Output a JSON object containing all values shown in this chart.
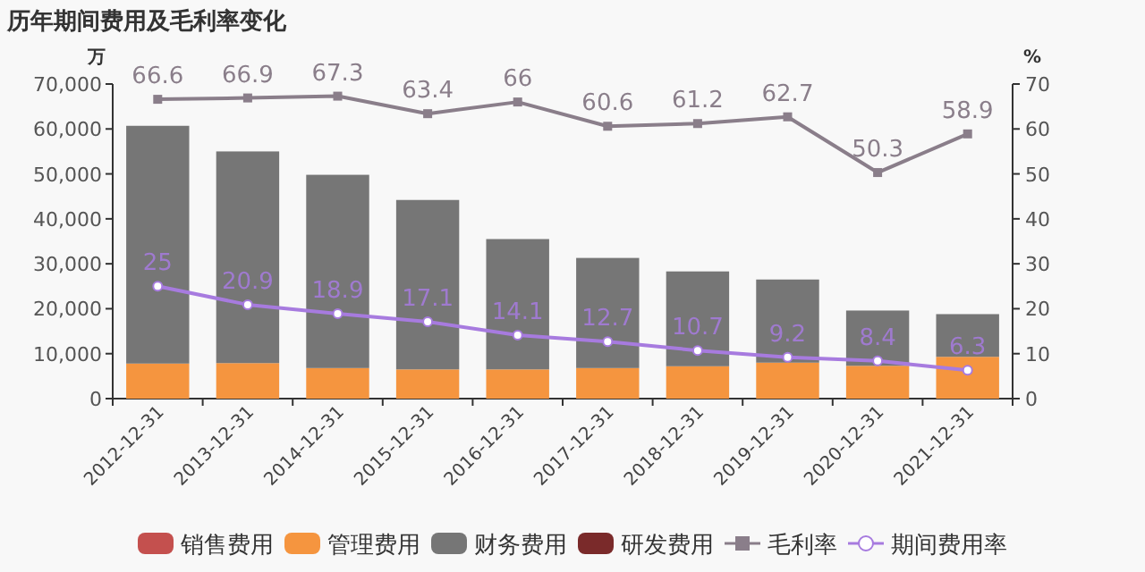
{
  "chart_data": {
    "type": "bar",
    "title": "历年期间费用及毛利率变化",
    "ylabel": "万",
    "y2label": "%",
    "stacked": true,
    "categories": [
      "2012-12-31",
      "2013-12-31",
      "2014-12-31",
      "2015-12-31",
      "2016-12-31",
      "2017-12-31",
      "2018-12-31",
      "2019-12-31",
      "2020-12-31",
      "2021-12-31"
    ],
    "series": [
      {
        "name": "销售费用",
        "color": "#c4504e",
        "values": [
          null,
          null,
          null,
          null,
          null,
          null,
          null,
          null,
          null,
          null
        ]
      },
      {
        "name": "管理费用",
        "color": "#f5953f",
        "values": [
          7800,
          7900,
          6800,
          6500,
          6500,
          6800,
          7200,
          8000,
          7300,
          9300
        ]
      },
      {
        "name": "财务费用",
        "color": "#767676",
        "values": [
          52900,
          47100,
          43000,
          37700,
          29000,
          24500,
          21100,
          18500,
          12300,
          9500
        ]
      },
      {
        "name": "研发费用",
        "color": "#7a2a2a",
        "values": [
          null,
          null,
          null,
          null,
          null,
          null,
          null,
          null,
          null,
          null
        ]
      },
      {
        "name": "毛利率",
        "type": "line",
        "axis": "y2",
        "color": "#8a7e8a",
        "marker": "square",
        "data_labels": true,
        "values": [
          66.6,
          66.9,
          67.3,
          63.4,
          66,
          60.6,
          61.2,
          62.7,
          50.3,
          58.9
        ]
      },
      {
        "name": "期间费用率",
        "type": "line",
        "axis": "y2",
        "color": "#a77bdf",
        "marker": "circle",
        "data_labels": true,
        "values": [
          25,
          20.9,
          18.9,
          17.1,
          14.1,
          12.7,
          10.7,
          9.2,
          8.4,
          6.3
        ]
      }
    ],
    "ylim": [
      0,
      70000
    ],
    "yticks": [
      {
        "value": 0,
        "label": "0"
      },
      {
        "value": 10000,
        "label": "10,000"
      },
      {
        "value": 20000,
        "label": "20,000"
      },
      {
        "value": 30000,
        "label": "30,000"
      },
      {
        "value": 40000,
        "label": "40,000"
      },
      {
        "value": 50000,
        "label": "50,000"
      },
      {
        "value": 60000,
        "label": "60,000"
      },
      {
        "value": 70000,
        "label": "70,000"
      }
    ],
    "y2lim": [
      0,
      70
    ],
    "y2ticks": [
      0,
      10,
      20,
      30,
      40,
      50,
      60,
      70
    ],
    "legend": "bottom",
    "grid": false
  }
}
